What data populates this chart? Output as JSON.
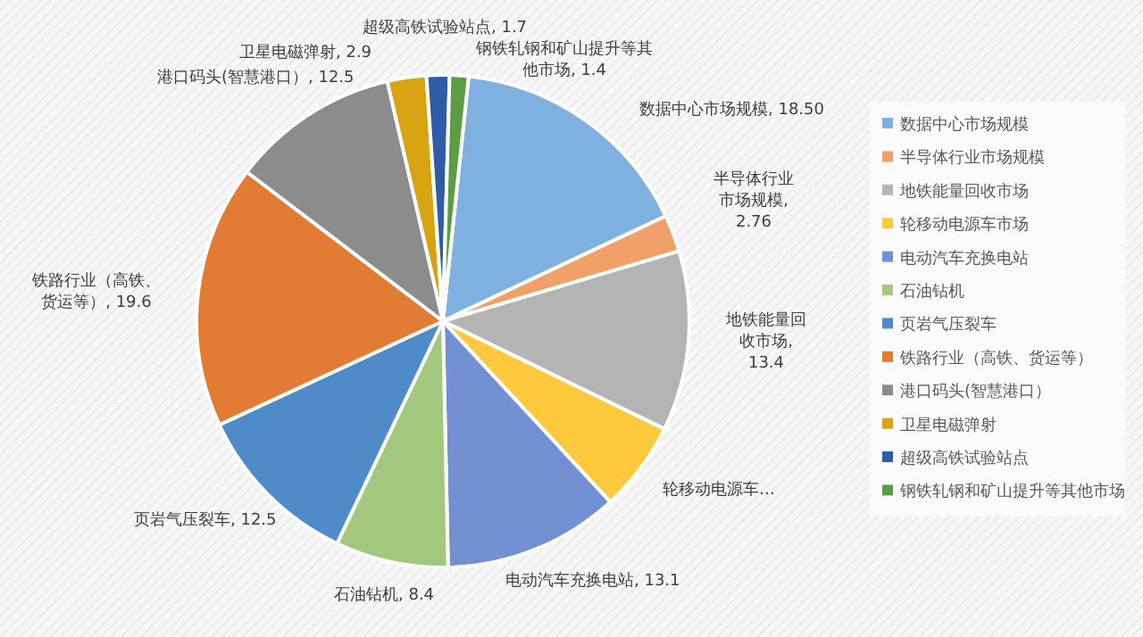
{
  "chart_data": {
    "type": "pie",
    "categories": [
      "数据中心市场规模",
      "半导体行业市场规模",
      "地铁能量回收市场",
      "轮移动电源车市场",
      "电动汽车充换电站",
      "石油钻机",
      "页岩气压裂车",
      "铁路行业（高铁、货运等）",
      "港口码头(智慧港口）",
      "卫星电磁弹射",
      "超级高铁试验站点",
      "钢铁轧钢和矿山提升等其他市场"
    ],
    "values": [
      18.5,
      2.76,
      13.4,
      6.7,
      13.1,
      8.4,
      12.5,
      19.6,
      12.5,
      2.9,
      1.7,
      1.4
    ],
    "value_labels": [
      "数据中心市场规模, 18.50",
      "半导体行业市场规模, 2.76",
      "地铁能量回收市场, 13.4",
      "轮移动电源车…",
      "电动汽车充换电站, 13.1",
      "石油钻机, 8.4",
      "页岩气压裂车, 12.5",
      "铁路行业（高铁、货运等）, 19.6",
      "港口码头(智慧港口）, 12.5",
      "卫星电磁弹射, 2.9",
      "超级高铁试验站点, 1.7",
      "钢铁轧钢和矿山提升等其他市场, 1.4"
    ],
    "colors": [
      "#7eb0e0",
      "#f2a06a",
      "#b4b4b4",
      "#ffc93e",
      "#7391d2",
      "#a2c87e",
      "#4f8bc9",
      "#e27c34",
      "#8c8c8c",
      "#d6a312",
      "#2f5ca6",
      "#5d9c42"
    ],
    "legend": "right"
  }
}
